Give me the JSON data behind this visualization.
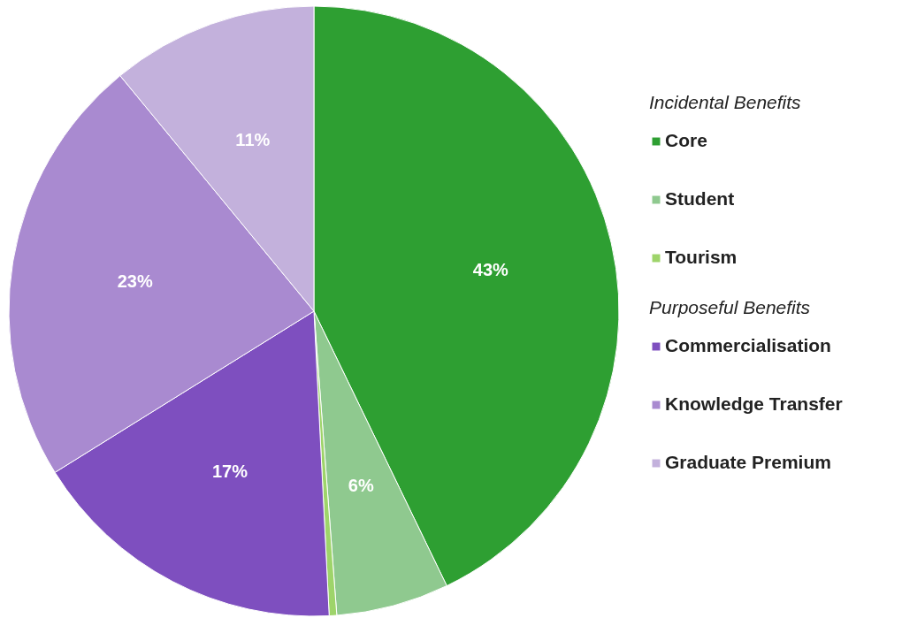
{
  "chart_data": {
    "type": "pie",
    "categories": [
      "Core",
      "Student",
      "Tourism",
      "Commercialisation",
      "Knowledge Transfer",
      "Graduate Premium"
    ],
    "values": [
      43,
      6,
      0.4,
      17,
      23,
      11
    ],
    "value_labels": [
      "43%",
      "6%",
      null,
      "17%",
      "23%",
      "11%"
    ],
    "colors": [
      "#2e9f32",
      "#8fc98f",
      "#9ed46a",
      "#7e4fbf",
      "#a98ad0",
      "#c3b1dc"
    ],
    "annotations": [
      "Incidental Benefits",
      "Purposeful Benefits"
    ],
    "legend": "right"
  }
}
